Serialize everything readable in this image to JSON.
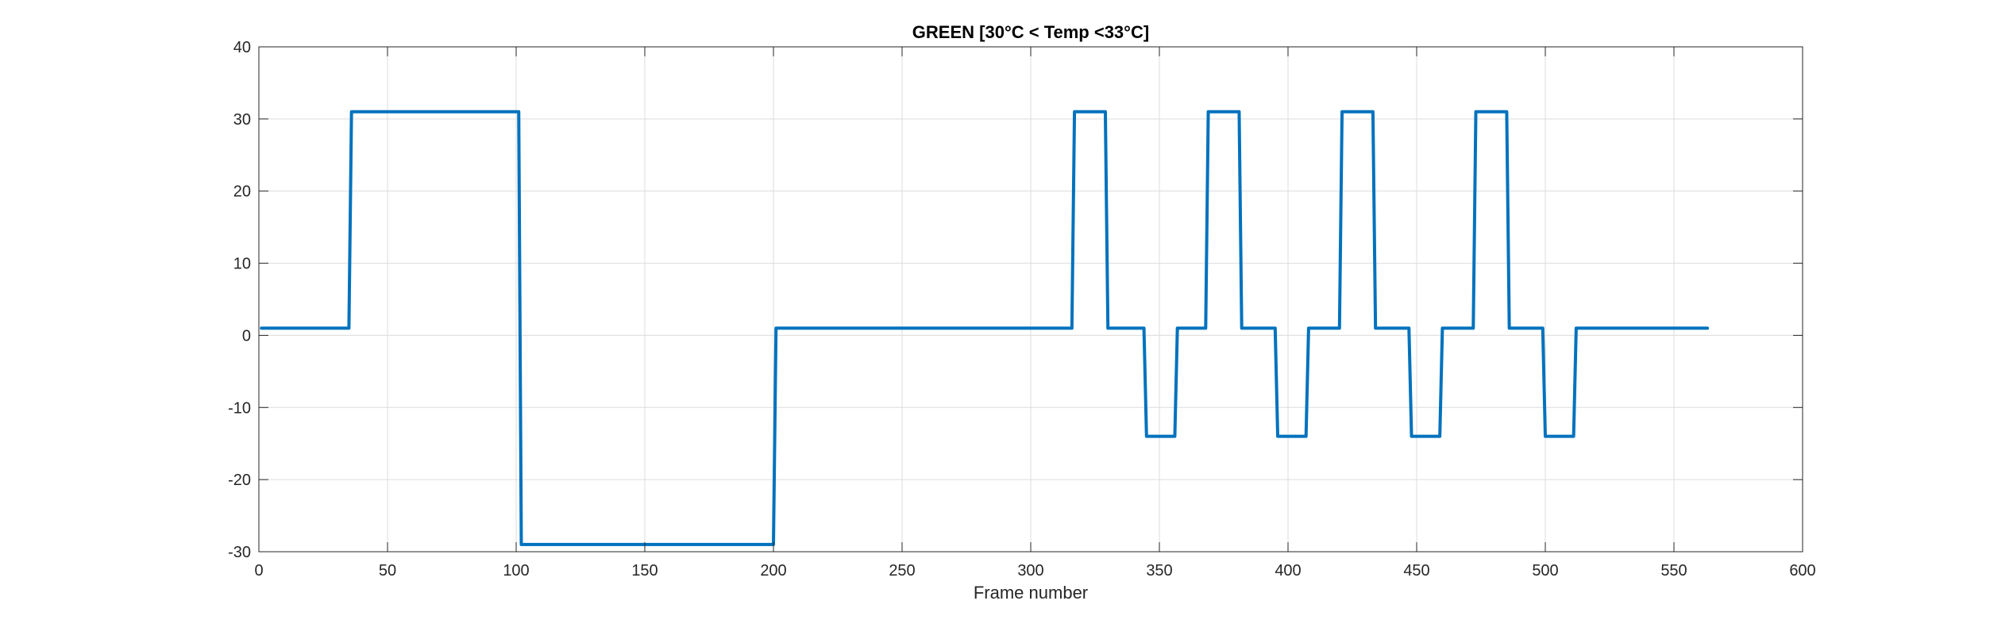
{
  "chart_data": {
    "type": "line",
    "title": "GREEN [30°C < Temp <33°C]",
    "xlabel": "Frame number",
    "ylabel": "",
    "xlim": [
      0,
      600
    ],
    "ylim": [
      -30,
      40
    ],
    "xticks": [
      0,
      50,
      100,
      150,
      200,
      250,
      300,
      350,
      400,
      450,
      500,
      550,
      600
    ],
    "yticks": [
      -30,
      -20,
      -10,
      0,
      10,
      20,
      30,
      40
    ],
    "grid": true,
    "legend": "none",
    "series": [
      {
        "color": "#0072BD",
        "x": [
          1,
          35,
          36,
          101,
          102,
          200,
          201,
          316,
          317,
          329,
          330,
          344,
          345,
          356,
          357,
          368,
          369,
          381,
          382,
          395,
          396,
          407,
          408,
          420,
          421,
          433,
          434,
          447,
          448,
          459,
          460,
          472,
          473,
          485,
          486,
          499,
          500,
          511,
          512,
          563
        ],
        "y": [
          1,
          1,
          31,
          31,
          -29,
          -29,
          1,
          1,
          31,
          31,
          1,
          1,
          -14,
          -14,
          1,
          1,
          31,
          31,
          1,
          1,
          -14,
          -14,
          1,
          1,
          31,
          31,
          1,
          1,
          -14,
          -14,
          1,
          1,
          31,
          31,
          1,
          1,
          -14,
          -14,
          1,
          1
        ]
      }
    ]
  }
}
